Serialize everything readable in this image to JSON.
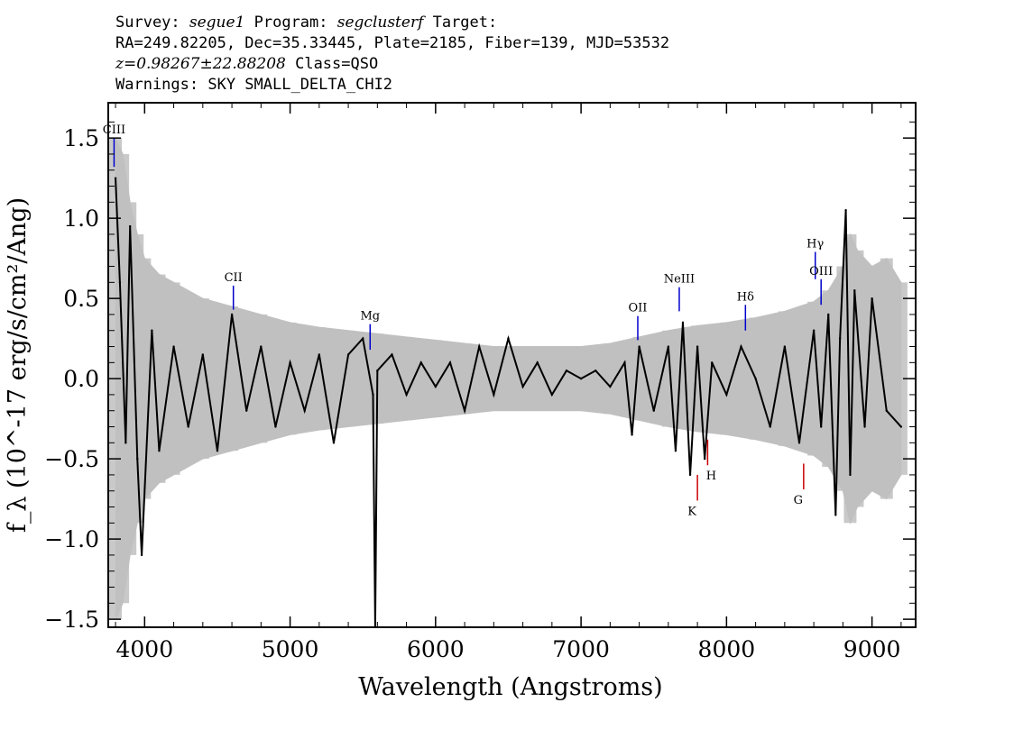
{
  "header": {
    "line1": {
      "survey_label": "Survey: ",
      "survey": "segue1",
      "program_label": " Program: ",
      "program": "segclusterf",
      "target_label": " Target:"
    },
    "line2": "RA=249.82205, Dec=35.33445, Plate=2185, Fiber=139, MJD=53532",
    "line3": {
      "redshift": "z=0.98267±22.88208",
      "class_label": " Class=QSO"
    },
    "line4": "Warnings: SKY SMALL_DELTA_CHI2"
  },
  "chart_data": {
    "type": "line",
    "xlabel": "Wavelength (Angstroms)",
    "ylabel": "f_λ (10^-17 erg/s/cm²/Ang)",
    "xlim": [
      3750,
      9300
    ],
    "ylim": [
      -1.55,
      1.72
    ],
    "x_ticks": [
      4000,
      5000,
      6000,
      7000,
      8000,
      9000
    ],
    "x_tick_labels": [
      "4000",
      "5000",
      "6000",
      "7000",
      "8000",
      "9000"
    ],
    "y_ticks": [
      -1.5,
      -1.0,
      -0.5,
      0.0,
      0.5,
      1.0,
      1.5
    ],
    "y_tick_labels": [
      "−1.5",
      "−1.0",
      "−0.5",
      "0.0",
      "0.5",
      "1.0",
      "1.5"
    ],
    "colors": {
      "flux": "#000000",
      "error": "#c0c0c0",
      "emission_line": "#0000cc",
      "absorption_line": "#cc0000"
    },
    "series": [
      {
        "role": "flux",
        "x": [
          3800,
          3830,
          3870,
          3900,
          3950,
          3980,
          4050,
          4100,
          4200,
          4300,
          4400,
          4500,
          4600,
          4700,
          4800,
          4900,
          5000,
          5100,
          5200,
          5300,
          5400,
          5500,
          5570,
          5585,
          5600,
          5700,
          5800,
          5900,
          6000,
          6100,
          6200,
          6300,
          6400,
          6500,
          6600,
          6700,
          6800,
          6900,
          7000,
          7100,
          7200,
          7300,
          7350,
          7400,
          7500,
          7600,
          7650,
          7700,
          7750,
          7800,
          7850,
          7900,
          8000,
          8100,
          8200,
          8300,
          8400,
          8500,
          8600,
          8650,
          8700,
          8750,
          8780,
          8820,
          8850,
          8880,
          8950,
          9000,
          9100,
          9200
        ],
        "y": [
          1.25,
          0.6,
          -0.4,
          0.95,
          -0.5,
          -1.1,
          0.3,
          -0.45,
          0.2,
          -0.3,
          0.15,
          -0.45,
          0.4,
          -0.2,
          0.2,
          -0.3,
          0.1,
          -0.2,
          0.15,
          -0.4,
          0.15,
          0.25,
          -0.1,
          -1.55,
          0.05,
          0.15,
          -0.1,
          0.1,
          -0.05,
          0.1,
          -0.2,
          0.2,
          -0.1,
          0.25,
          -0.05,
          0.1,
          -0.1,
          0.05,
          0.0,
          0.05,
          -0.05,
          0.1,
          -0.35,
          0.2,
          -0.2,
          0.2,
          -0.45,
          0.35,
          -0.6,
          0.2,
          -0.5,
          0.1,
          -0.1,
          0.2,
          0.0,
          -0.3,
          0.2,
          -0.4,
          0.3,
          -0.3,
          0.4,
          -0.85,
          0.25,
          1.05,
          -0.6,
          0.55,
          -0.3,
          0.5,
          -0.2,
          -0.3
        ]
      },
      {
        "role": "error",
        "x": [
          3800,
          3850,
          3900,
          3950,
          4000,
          4100,
          4200,
          4400,
          4600,
          4800,
          5000,
          5200,
          5400,
          5600,
          5800,
          6000,
          6200,
          6400,
          6600,
          6800,
          7000,
          7200,
          7400,
          7600,
          7800,
          8000,
          8200,
          8400,
          8600,
          8700,
          8800,
          8850,
          8900,
          9000,
          9100,
          9200
        ],
        "y": [
          1.5,
          1.4,
          1.1,
          0.9,
          0.75,
          0.65,
          0.6,
          0.5,
          0.45,
          0.4,
          0.35,
          0.32,
          0.3,
          0.28,
          0.26,
          0.24,
          0.22,
          0.2,
          0.2,
          0.2,
          0.2,
          0.22,
          0.26,
          0.3,
          0.33,
          0.35,
          0.38,
          0.42,
          0.48,
          0.55,
          0.7,
          0.9,
          0.8,
          0.7,
          0.75,
          0.6
        ]
      }
    ],
    "line_labels": [
      {
        "label": "CIII",
        "wavelength": 3790,
        "y_top": 1.5,
        "y_bottom": 1.32,
        "kind": "emission"
      },
      {
        "label": "CII",
        "wavelength": 4610,
        "y_top": 0.58,
        "y_bottom": 0.43,
        "kind": "emission"
      },
      {
        "label": "Mg",
        "wavelength": 5550,
        "y_top": 0.34,
        "y_bottom": 0.18,
        "kind": "emission"
      },
      {
        "label": "OII",
        "wavelength": 7390,
        "y_top": 0.39,
        "y_bottom": 0.24,
        "kind": "emission"
      },
      {
        "label": "NeIII",
        "wavelength": 7675,
        "y_top": 0.57,
        "y_bottom": 0.42,
        "kind": "emission"
      },
      {
        "label": "Hδ",
        "wavelength": 8130,
        "y_top": 0.46,
        "y_bottom": 0.3,
        "kind": "emission"
      },
      {
        "label": "Hγ",
        "wavelength": 8610,
        "y_top": 0.79,
        "y_bottom": 0.62,
        "kind": "emission"
      },
      {
        "label": "OIII",
        "wavelength": 8650,
        "y_top": 0.62,
        "y_bottom": 0.46,
        "kind": "emission"
      },
      {
        "label": "K",
        "wavelength": 7800,
        "y_top": -0.6,
        "y_bottom": -0.76,
        "kind": "absorption"
      },
      {
        "label": "H",
        "wavelength": 7870,
        "y_top": -0.38,
        "y_bottom": -0.54,
        "kind": "absorption"
      },
      {
        "label": "G",
        "wavelength": 8530,
        "y_top": -0.53,
        "y_bottom": -0.69,
        "kind": "absorption"
      }
    ]
  }
}
